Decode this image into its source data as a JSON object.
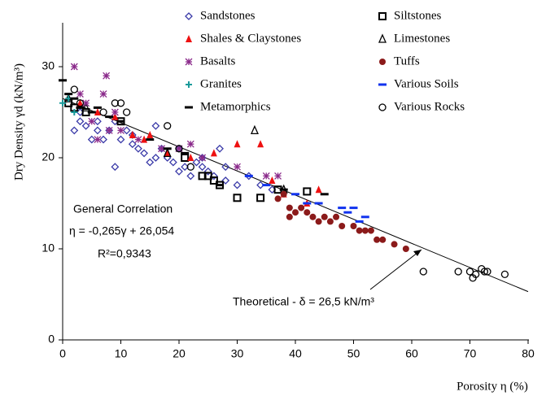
{
  "chart_data": {
    "type": "scatter",
    "xlabel": "Porosity η (%)",
    "ylabel": "Dry Density γd (kN/m³)",
    "xlim": [
      0,
      80
    ],
    "ylim": [
      0,
      35
    ],
    "xticks": [
      0,
      10,
      20,
      30,
      40,
      50,
      60,
      70,
      80
    ],
    "yticks": [
      0,
      10,
      20,
      30
    ],
    "grid": false,
    "series": [
      {
        "name": "Sandstones",
        "marker": "diamond",
        "color": "#3a3aa8",
        "x": [
          2,
          3,
          4,
          5,
          6,
          7,
          8,
          9,
          10,
          11,
          12,
          13,
          14,
          15,
          16,
          17,
          18,
          19,
          20,
          21,
          22,
          23,
          24,
          25,
          26,
          27,
          28,
          30,
          32,
          34,
          36,
          3,
          6,
          9,
          12,
          16,
          20,
          24,
          28
        ],
        "values": [
          23,
          24,
          23.5,
          22,
          24,
          22,
          23,
          19,
          22,
          23,
          21.5,
          21,
          20.5,
          19.5,
          20,
          21,
          20,
          19.5,
          18.5,
          19,
          18,
          19.5,
          20,
          18.5,
          18,
          21,
          19,
          17,
          18,
          17,
          16.5,
          25,
          23,
          24,
          22.5,
          23.5,
          21,
          19,
          17.5
        ]
      },
      {
        "name": "Siltstones",
        "marker": "square",
        "color": "#000000",
        "x": [
          1,
          2,
          4,
          10,
          21,
          24,
          25,
          26,
          27,
          30,
          34,
          37,
          42
        ],
        "values": [
          26,
          25.5,
          25,
          24,
          20,
          18,
          18,
          17.5,
          17,
          15.6,
          15.6,
          16.5,
          16.3
        ]
      },
      {
        "name": "Shales  & Claystones",
        "marker": "triangle-fill",
        "color": "#ee1111",
        "x": [
          3,
          6,
          9,
          12,
          14,
          15,
          18,
          22,
          26,
          30,
          34,
          36,
          38,
          42,
          44
        ],
        "values": [
          26,
          25,
          24.5,
          22.5,
          22,
          22.5,
          20.5,
          20,
          20.5,
          21.5,
          21.5,
          17.5,
          16,
          15,
          16.5
        ]
      },
      {
        "name": "Limestones",
        "marker": "triangle",
        "color": "#000000",
        "x": [
          1,
          4,
          18,
          33,
          38
        ],
        "values": [
          26.5,
          25.5,
          20.5,
          23,
          16.5
        ]
      },
      {
        "name": "Basalts",
        "marker": "asterisk",
        "color": "#8b2b8b",
        "x": [
          2,
          3,
          4,
          5,
          6,
          7,
          7.5,
          8,
          9,
          10,
          13,
          17,
          20,
          22,
          24,
          30,
          35,
          37
        ],
        "values": [
          30,
          27,
          26,
          24,
          22,
          27,
          29,
          23,
          25,
          23,
          22,
          21,
          21,
          21.5,
          20,
          19,
          18,
          18
        ]
      },
      {
        "name": "Tuffs",
        "marker": "circle-fill",
        "color": "#8b1a1a",
        "x": [
          37,
          38,
          39,
          39,
          40,
          41,
          42,
          43,
          44,
          45,
          46,
          47,
          48,
          50,
          51,
          52,
          53,
          54,
          55,
          57,
          59
        ],
        "values": [
          15.5,
          16,
          13.5,
          14.5,
          14,
          14.5,
          14,
          13.5,
          13,
          13.5,
          13,
          13.5,
          12.5,
          12.5,
          12,
          12,
          12,
          11,
          11,
          10.5,
          10
        ]
      },
      {
        "name": "Granites",
        "marker": "plus",
        "color": "#1a9a9a",
        "x": [
          0,
          1,
          2
        ],
        "values": [
          26,
          26.5,
          25
        ]
      },
      {
        "name": "Various Soils",
        "marker": "dash",
        "color": "#1133ee",
        "x": [
          32,
          35,
          40,
          42,
          44,
          48,
          49,
          50,
          51,
          52
        ],
        "values": [
          18,
          17,
          16,
          15,
          15,
          14.5,
          14,
          14.5,
          13,
          13.5
        ]
      },
      {
        "name": "Metamorphics",
        "marker": "dash",
        "color": "#000000",
        "x": [
          0,
          1,
          2,
          3,
          5,
          6,
          8,
          10,
          15,
          18,
          21,
          27,
          38,
          45
        ],
        "values": [
          28.5,
          27,
          26.5,
          25.5,
          25,
          25.5,
          24.5,
          24,
          22,
          21,
          20.5,
          17,
          16.5,
          16
        ]
      },
      {
        "name": "Various Rocks",
        "marker": "circle",
        "color": "#000000",
        "x": [
          2,
          3,
          7,
          9,
          10,
          11,
          18,
          20,
          22,
          62,
          68,
          70,
          70.5,
          71,
          72,
          72.5,
          73,
          76
        ],
        "values": [
          27.5,
          26,
          25,
          26,
          26,
          25,
          23.5,
          21,
          19,
          7.5,
          7.5,
          7.5,
          6.8,
          7.2,
          7.8,
          7.5,
          7.5,
          7.2
        ]
      }
    ],
    "theoretical_line": {
      "x": [
        0,
        80
      ],
      "values": [
        26.5,
        5.3
      ]
    },
    "annotations": [
      "General Correlation",
      "η = -0,265γ + 26,054",
      "R²=0,9343",
      "Theoretical - δ = 26,5 kN/m³"
    ]
  }
}
